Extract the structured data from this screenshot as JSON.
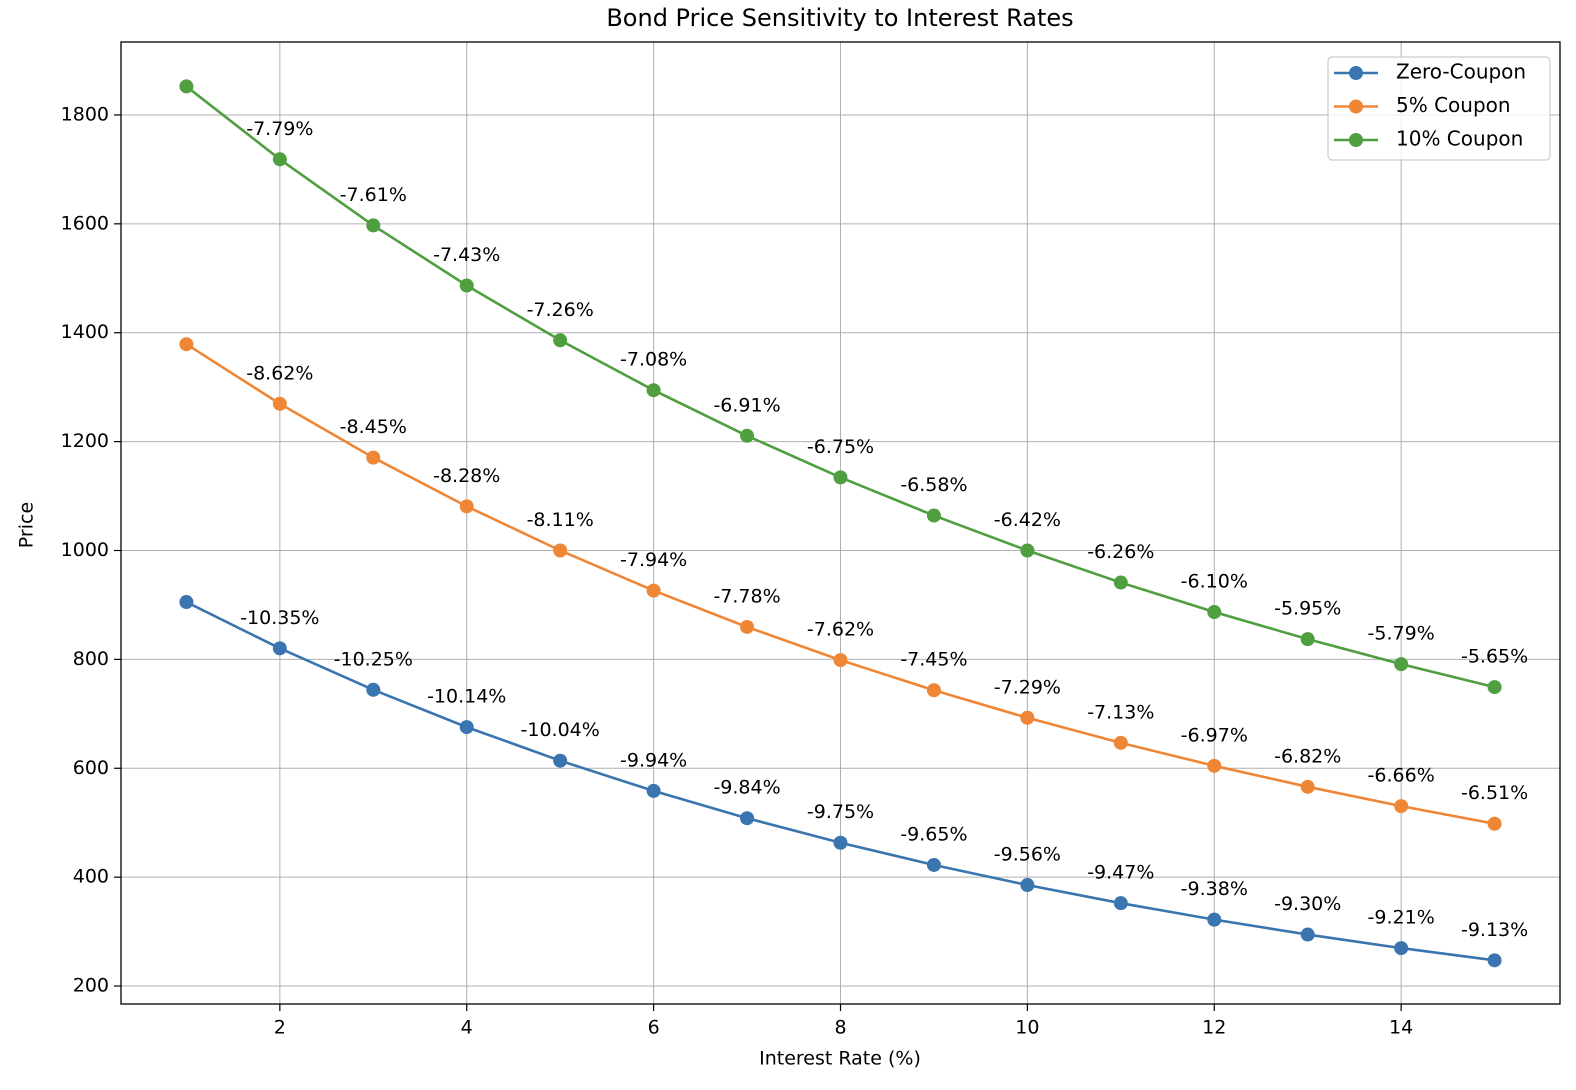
{
  "chart_data": {
    "type": "line",
    "title": "Bond Price Sensitivity to Interest Rates",
    "xlabel": "Interest Rate (%)",
    "ylabel": "Price",
    "x": [
      1,
      2,
      3,
      4,
      5,
      6,
      7,
      8,
      9,
      10,
      11,
      12,
      13,
      14,
      15
    ],
    "xlim": [
      0.3,
      15.7
    ],
    "xticks": [
      2,
      4,
      6,
      8,
      10,
      12,
      14
    ],
    "ylim": [
      167,
      1934
    ],
    "yticks": [
      200,
      400,
      600,
      800,
      1000,
      1200,
      1400,
      1600,
      1800
    ],
    "grid": true,
    "legend": "upper right",
    "series": [
      {
        "name": "Zero-Coupon",
        "color": "#3a75b0",
        "values": [
          905.3,
          820.3,
          744.1,
          675.6,
          613.9,
          558.4,
          508.3,
          463.2,
          422.4,
          385.5,
          352.2,
          322.0,
          294.6,
          269.7,
          247.2
        ],
        "annotations": [
          null,
          "-10.35%",
          "-10.25%",
          "-10.14%",
          "-10.04%",
          "-9.94%",
          "-9.84%",
          "-9.75%",
          "-9.65%",
          "-9.56%",
          "-9.47%",
          "-9.38%",
          "-9.30%",
          "-9.21%",
          "-9.13%"
        ]
      },
      {
        "name": "5% Coupon",
        "color": "#ef8636",
        "values": [
          1378.9,
          1269.5,
          1170.6,
          1081.1,
          1000.0,
          926.4,
          859.5,
          798.7,
          743.3,
          692.7,
          646.7,
          604.5,
          565.9,
          530.5,
          498.1
        ],
        "annotations": [
          null,
          "-8.62%",
          "-8.45%",
          "-8.28%",
          "-8.11%",
          "-7.94%",
          "-7.78%",
          "-7.62%",
          "-7.45%",
          "-7.29%",
          "-7.13%",
          "-6.97%",
          "-6.82%",
          "-6.66%",
          "-6.51%"
        ]
      },
      {
        "name": "10% Coupon",
        "color": "#4f9e3f",
        "values": [
          1852.4,
          1718.6,
          1597.1,
          1486.7,
          1386.1,
          1294.4,
          1210.7,
          1134.2,
          1064.2,
          1000.0,
          941.1,
          887.0,
          837.2,
          791.3,
          749.1
        ],
        "annotations": [
          null,
          "-7.79%",
          "-7.61%",
          "-7.43%",
          "-7.26%",
          "-7.08%",
          "-6.91%",
          "-6.75%",
          "-6.58%",
          "-6.42%",
          "-6.26%",
          "-6.10%",
          "-5.95%",
          "-5.79%",
          "-5.65%"
        ]
      }
    ]
  }
}
